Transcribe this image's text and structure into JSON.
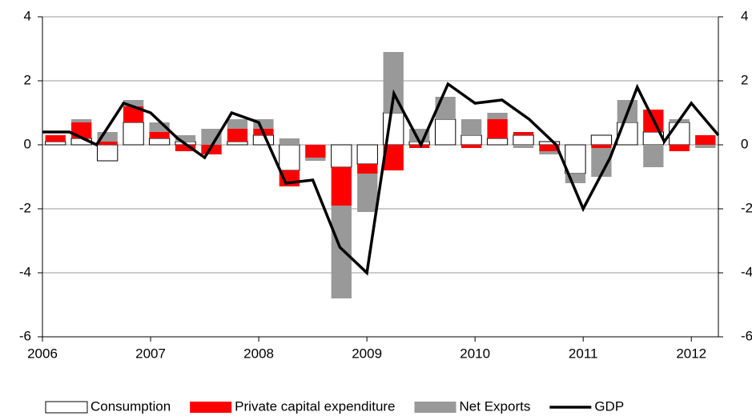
{
  "chart_data": {
    "type": "stacked-bar-line",
    "x": [
      2006,
      2006.25,
      2006.5,
      2006.75,
      2007,
      2007.25,
      2007.5,
      2007.75,
      2008,
      2008.25,
      2008.5,
      2008.75,
      2009,
      2009.25,
      2009.5,
      2009.75,
      2010,
      2010.25,
      2010.5,
      2010.75,
      2011,
      2011.25,
      2011.5,
      2011.75,
      2012,
      2012.25
    ],
    "series": [
      {
        "name": "Consumption",
        "kind": "bar",
        "color": "#ffffff",
        "values": [
          0.1,
          0.2,
          -0.5,
          0.7,
          0.2,
          0.1,
          0,
          0.1,
          0.3,
          -0.8,
          0,
          -0.7,
          -0.6,
          1.0,
          0.1,
          0.8,
          0.3,
          0.2,
          0.3,
          0.1,
          -0.9,
          0.3,
          0.7,
          0.4,
          0.7,
          0
        ]
      },
      {
        "name": "Private capital expenditure",
        "kind": "bar",
        "color": "#ff0000",
        "values": [
          0.2,
          0.5,
          0.1,
          0.5,
          0.2,
          -0.2,
          -0.3,
          0.4,
          0.2,
          -0.5,
          -0.4,
          -1.2,
          -0.3,
          -0.8,
          -0.1,
          0,
          -0.1,
          0.6,
          0.1,
          -0.2,
          0,
          -0.1,
          0,
          0.7,
          -0.2,
          0.3
        ]
      },
      {
        "name": "Net Exports",
        "kind": "bar",
        "color": "#999999",
        "values": [
          0,
          0.1,
          0.3,
          0.2,
          0.3,
          0.2,
          0.5,
          0.3,
          0.3,
          0.2,
          -0.1,
          -2.9,
          -1.2,
          1.9,
          0.4,
          0.7,
          0.5,
          0.2,
          -0.1,
          -0.1,
          -0.3,
          -0.9,
          0.7,
          -0.7,
          0.1,
          -0.1
        ]
      },
      {
        "name": "GDP",
        "kind": "line",
        "color": "#000000",
        "values": [
          0.4,
          0.4,
          0,
          1.3,
          1.0,
          0.2,
          -0.4,
          1.0,
          0.7,
          -1.2,
          -1.1,
          -3.2,
          -4,
          1.6,
          0,
          1.9,
          1.3,
          1.4,
          0.8,
          0,
          -2,
          -0.4,
          1.8,
          0.1,
          1.3,
          0.3
        ]
      }
    ],
    "xlim": [
      2006,
      2012.25
    ],
    "xticks": [
      2006,
      2007,
      2008,
      2009,
      2010,
      2011,
      2012
    ],
    "ylim": [
      -6,
      4
    ],
    "yticks": [
      -6,
      -4,
      -2,
      0,
      2,
      4
    ],
    "y2lim": [
      -6,
      4
    ],
    "y2ticks": [
      -6,
      -4,
      -2,
      0,
      2,
      4
    ],
    "grid": true,
    "legend": "bottom"
  }
}
